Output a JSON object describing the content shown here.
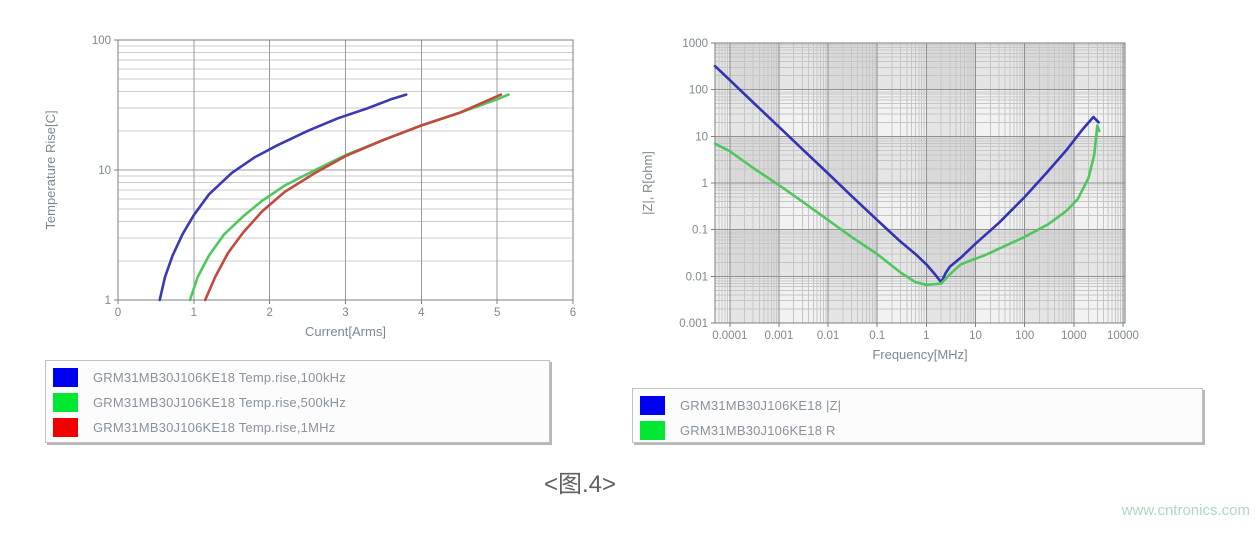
{
  "caption": "<图.4>",
  "watermark": "www.cntronics.com",
  "chart_data": [
    {
      "type": "line",
      "title": "",
      "xlabel": "Current[Arms]",
      "ylabel": "Temperature Rise[C]",
      "xscale": "linear",
      "yscale": "log",
      "xlim": [
        0,
        6
      ],
      "ylim": [
        1,
        100
      ],
      "xticks": [
        0,
        1,
        2,
        3,
        4,
        5,
        6
      ],
      "xtick_labels": [
        "0",
        "1",
        "2",
        "3",
        "4",
        "5",
        "6"
      ],
      "yticks": [
        1,
        10,
        100
      ],
      "ytick_labels": [
        "1",
        "10",
        "100"
      ],
      "grid": true,
      "plaid": false,
      "legend_position": "below-left",
      "series": [
        {
          "name": "GRM31MB30J106KE18 Temp.rise,100kHz",
          "swatch": "#0000f0",
          "stroke": "#3a3ab2",
          "points": [
            [
              0.55,
              1
            ],
            [
              0.62,
              1.5
            ],
            [
              0.72,
              2.2
            ],
            [
              0.85,
              3.2
            ],
            [
              1.0,
              4.5
            ],
            [
              1.2,
              6.5
            ],
            [
              1.5,
              9.5
            ],
            [
              1.8,
              12.5
            ],
            [
              2.1,
              15.5
            ],
            [
              2.5,
              20
            ],
            [
              2.9,
              25
            ],
            [
              3.3,
              30
            ],
            [
              3.6,
              35
            ],
            [
              3.8,
              38
            ]
          ]
        },
        {
          "name": "GRM31MB30J106KE18 Temp.rise,500kHz",
          "swatch": "#00e832",
          "stroke": "#4fc75f",
          "points": [
            [
              0.95,
              1
            ],
            [
              1.05,
              1.5
            ],
            [
              1.2,
              2.2
            ],
            [
              1.4,
              3.2
            ],
            [
              1.65,
              4.4
            ],
            [
              1.9,
              5.8
            ],
            [
              2.2,
              7.6
            ],
            [
              2.6,
              10
            ],
            [
              3.0,
              13
            ],
            [
              3.5,
              17
            ],
            [
              4.0,
              22
            ],
            [
              4.5,
              27.5
            ],
            [
              5.0,
              35
            ],
            [
              5.15,
              38
            ]
          ]
        },
        {
          "name": "GRM31MB30J106KE18 Temp.rise,1MHz",
          "swatch": "#f00000",
          "stroke": "#c1493d",
          "points": [
            [
              1.15,
              1
            ],
            [
              1.28,
              1.5
            ],
            [
              1.45,
              2.3
            ],
            [
              1.65,
              3.3
            ],
            [
              1.9,
              4.8
            ],
            [
              2.2,
              6.8
            ],
            [
              2.6,
              9.5
            ],
            [
              3.0,
              12.8
            ],
            [
              3.5,
              17
            ],
            [
              4.0,
              22
            ],
            [
              4.5,
              27.5
            ],
            [
              5.05,
              38
            ]
          ]
        }
      ]
    },
    {
      "type": "line",
      "title": "",
      "xlabel": "Frequency[MHz]",
      "ylabel": "|Z|, R[ohm]",
      "xscale": "log",
      "yscale": "log",
      "xlim": [
        5e-05,
        11000
      ],
      "ylim": [
        0.001,
        1000
      ],
      "xticks": [
        0.0001,
        0.001,
        0.01,
        0.1,
        1,
        10,
        100,
        1000,
        10000
      ],
      "xtick_labels": [
        "0.0001",
        "0.001",
        "0.01",
        "0.1",
        "1",
        "10",
        "100",
        "1000",
        "10000"
      ],
      "yticks": [
        1000,
        100,
        10,
        1,
        0.1,
        0.01,
        0.001
      ],
      "ytick_labels": [
        "1000",
        "100",
        "10",
        "1",
        "0.1",
        "0.01",
        "0.001"
      ],
      "grid": true,
      "plaid": true,
      "legend_position": "below-left",
      "series": [
        {
          "name": "GRM31MB30J106KE18 |Z|",
          "swatch": "#0000f0",
          "stroke": "#3333b4",
          "points": [
            [
              5e-05,
              320
            ],
            [
              0.0001,
              160
            ],
            [
              0.0003,
              53
            ],
            [
              0.001,
              16
            ],
            [
              0.003,
              5.3
            ],
            [
              0.01,
              1.6
            ],
            [
              0.03,
              0.53
            ],
            [
              0.1,
              0.16
            ],
            [
              0.3,
              0.055
            ],
            [
              0.6,
              0.03
            ],
            [
              1,
              0.018
            ],
            [
              1.5,
              0.011
            ],
            [
              2,
              0.0075
            ],
            [
              2.5,
              0.012
            ],
            [
              3,
              0.016
            ],
            [
              5,
              0.025
            ],
            [
              10,
              0.05
            ],
            [
              30,
              0.14
            ],
            [
              100,
              0.5
            ],
            [
              300,
              1.8
            ],
            [
              700,
              5
            ],
            [
              1500,
              14
            ],
            [
              2500,
              26
            ],
            [
              3200,
              20
            ]
          ]
        },
        {
          "name": "GRM31MB30J106KE18 R",
          "swatch": "#00e832",
          "stroke": "#4fc75f",
          "points": [
            [
              5e-05,
              7
            ],
            [
              0.0001,
              4.8
            ],
            [
              0.0003,
              2.1
            ],
            [
              0.001,
              0.9
            ],
            [
              0.003,
              0.4
            ],
            [
              0.01,
              0.16
            ],
            [
              0.03,
              0.07
            ],
            [
              0.1,
              0.03
            ],
            [
              0.3,
              0.012
            ],
            [
              0.6,
              0.0075
            ],
            [
              1,
              0.0066
            ],
            [
              2,
              0.007
            ],
            [
              3,
              0.011
            ],
            [
              5,
              0.018
            ],
            [
              8,
              0.022
            ],
            [
              15,
              0.028
            ],
            [
              50,
              0.05
            ],
            [
              100,
              0.07
            ],
            [
              300,
              0.13
            ],
            [
              700,
              0.25
            ],
            [
              1200,
              0.45
            ],
            [
              2000,
              1.3
            ],
            [
              2600,
              4
            ],
            [
              3000,
              17
            ],
            [
              3300,
              13
            ]
          ]
        }
      ]
    }
  ]
}
